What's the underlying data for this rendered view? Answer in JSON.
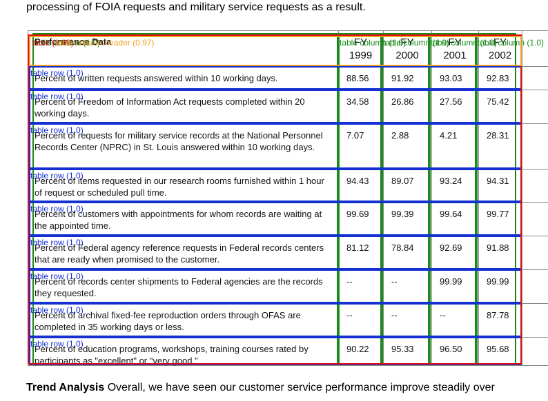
{
  "intro": "processing of FOIA requests and military service requests as a result.",
  "table": {
    "header": [
      "Performance Data",
      "FY 1999",
      "FY 2000",
      "FY 2001",
      "FY 2002"
    ],
    "rows": [
      [
        "Percent of written requests answered within 10 working days.",
        "88.56",
        "91.92",
        "93.03",
        "92.83"
      ],
      [
        "Percent of Freedom of Information Act requests completed within 20 working days.",
        "34.58",
        "26.86",
        "27.56",
        "75.42"
      ],
      [
        "Percent of requests for military service records at the National Personnel Records Center (NPRC) in St. Louis answered within 10 working days.",
        "7.07",
        "2.88",
        "4.21",
        "28.31"
      ],
      [
        "Percent of items requested in our research rooms furnished within 1 hour of request or scheduled pull time.",
        "94.43",
        "89.07",
        "93.24",
        "94.31"
      ],
      [
        "Percent of customers with appointments for whom records are waiting at the appointed time.",
        "99.69",
        "99.39",
        "99.64",
        "99.77"
      ],
      [
        "Percent of Federal agency reference requests in Federal records centers that are ready when promised to the customer.",
        "81.12",
        "78.84",
        "92.69",
        "91.88"
      ],
      [
        "Percent of records center shipments to Federal agencies are the records they requested.",
        "--",
        "--",
        "99.99",
        "99.99"
      ],
      [
        "Percent of archival fixed-fee reproduction orders through OFAS are completed in 35 working days or less.",
        "--",
        "--",
        "--",
        "87.78"
      ],
      [
        "Percent of education programs, workshops, training courses rated by participants as \"excellent\" or \"very good.\"",
        "90.22",
        "95.33",
        "96.50",
        "95.68"
      ]
    ]
  },
  "trend": {
    "title": "Trend Analysis",
    "text": "Overall, we have seen our customer service performance improve steadily over"
  },
  "annotations": {
    "table": "table (1.00)",
    "header": "table column header (0.97)",
    "columns": [
      "table column (1.0)",
      "table column (1.0)",
      "table column (1.0)",
      "table column (1.0)",
      "table column (1.0)"
    ],
    "rows": [
      "table row (1.0)",
      "table row (1.0)",
      "table row (1.0)",
      "table row (1.0)",
      "table row (1.0)",
      "table row (1.0)",
      "table row (1.0)",
      "table row (1.0)",
      "table row (1.0)"
    ]
  }
}
